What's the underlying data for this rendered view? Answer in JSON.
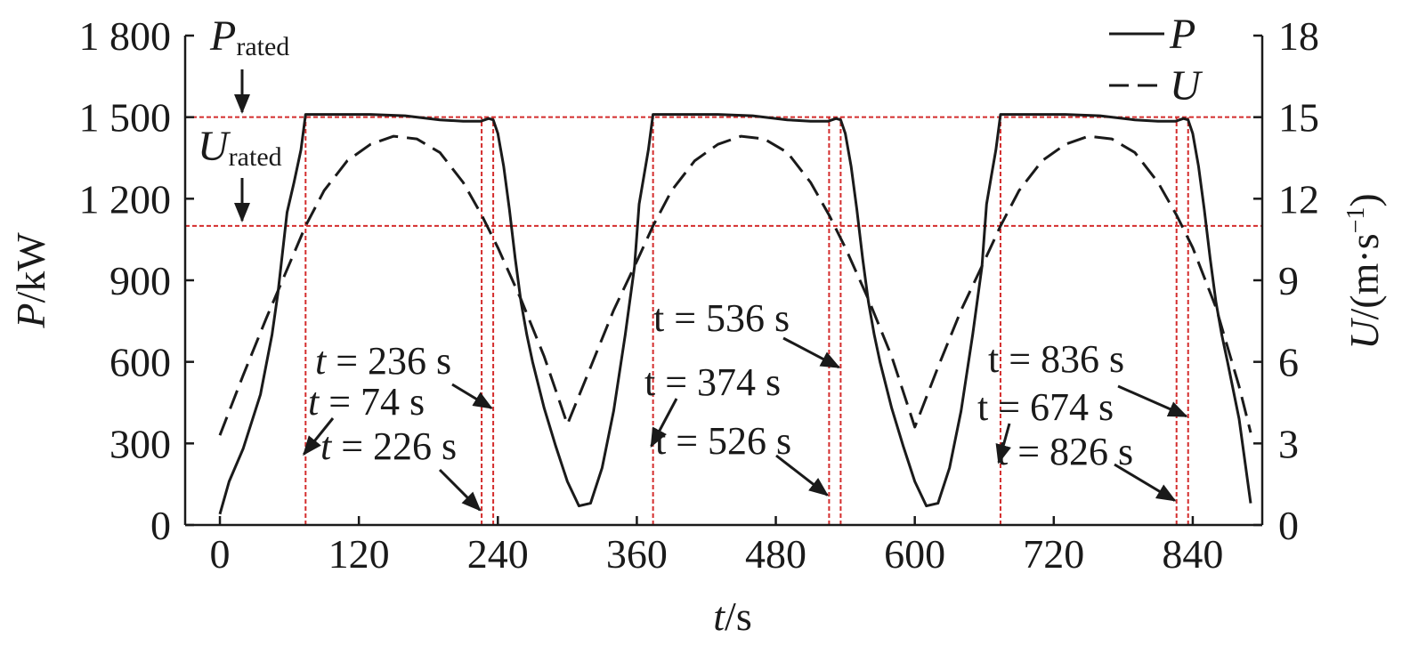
{
  "chart_data": {
    "type": "line",
    "xlabel": {
      "italic": "t",
      "rest": "/s"
    },
    "ylabel_left": {
      "italic": "P",
      "rest": "/kW"
    },
    "ylabel_right": {
      "italic": "U",
      "rest": "/(m·s",
      "sup": "−1",
      "close": ")"
    },
    "xlim": [
      -30,
      900
    ],
    "ylim_left": [
      0,
      1800
    ],
    "ylim_right": [
      0,
      18
    ],
    "x_ticks": [
      0,
      120,
      240,
      360,
      480,
      600,
      720,
      840
    ],
    "x_tick_labels": [
      "0",
      "120",
      "240",
      "360",
      "480",
      "600",
      "720",
      "840"
    ],
    "y_left_ticks": [
      0,
      300,
      600,
      900,
      1200,
      1500,
      1800
    ],
    "y_left_tick_labels": [
      "0",
      "300",
      "600",
      "900",
      "1 200",
      "1 500",
      "1 800"
    ],
    "y_right_ticks": [
      0,
      3,
      6,
      9,
      12,
      15,
      18
    ],
    "y_right_tick_labels": [
      "0",
      "3",
      "6",
      "9",
      "12",
      "15",
      "18"
    ],
    "legend": {
      "placement": "top-right",
      "entries": [
        {
          "name": "P",
          "style": "solid"
        },
        {
          "name": "U",
          "style": "dashed"
        }
      ]
    },
    "series": [
      {
        "name": "P",
        "axis": "left",
        "style": "solid",
        "color": "#1a1a1a",
        "x": [
          0,
          8,
          20,
          35,
          45,
          50,
          58,
          64,
          70,
          74,
          80,
          100,
          130,
          160,
          190,
          210,
          225,
          232,
          236,
          240,
          245,
          250,
          255,
          260,
          265,
          270,
          280,
          290,
          300,
          310,
          320,
          330,
          340,
          350,
          358,
          362,
          366,
          370,
          374,
          380,
          400,
          430,
          460,
          490,
          510,
          525,
          532,
          536,
          540,
          545,
          550,
          555,
          560,
          565,
          570,
          580,
          590,
          600,
          610,
          620,
          630,
          640,
          650,
          658,
          662,
          666,
          670,
          674,
          680,
          700,
          730,
          760,
          790,
          810,
          825,
          832,
          836,
          840,
          845,
          850,
          855,
          860,
          865,
          870,
          880,
          890
        ],
        "values": [
          40,
          160,
          280,
          480,
          700,
          850,
          1150,
          1260,
          1380,
          1510,
          1510,
          1510,
          1510,
          1505,
          1490,
          1485,
          1485,
          1495,
          1490,
          1440,
          1320,
          1160,
          980,
          820,
          700,
          600,
          430,
          290,
          160,
          70,
          80,
          210,
          420,
          700,
          950,
          1180,
          1280,
          1380,
          1510,
          1510,
          1510,
          1510,
          1505,
          1490,
          1485,
          1485,
          1495,
          1490,
          1440,
          1320,
          1160,
          980,
          820,
          700,
          600,
          430,
          290,
          160,
          70,
          80,
          210,
          420,
          700,
          950,
          1180,
          1280,
          1380,
          1510,
          1510,
          1510,
          1510,
          1505,
          1490,
          1485,
          1485,
          1495,
          1490,
          1440,
          1320,
          1160,
          980,
          820,
          700,
          600,
          390,
          80
        ]
      },
      {
        "name": "U",
        "axis": "right",
        "style": "dashed",
        "color": "#1a1a1a",
        "x": [
          0,
          20,
          40,
          60,
          74,
          90,
          110,
          130,
          150,
          170,
          190,
          210,
          226,
          240,
          260,
          280,
          300,
          320,
          340,
          360,
          374,
          390,
          410,
          430,
          450,
          470,
          490,
          510,
          526,
          540,
          560,
          580,
          600,
          620,
          640,
          660,
          674,
          690,
          710,
          730,
          750,
          770,
          790,
          810,
          826,
          840,
          860,
          880,
          890
        ],
        "values": [
          3.3,
          5.5,
          7.6,
          9.6,
          11.0,
          12.3,
          13.4,
          14.0,
          14.3,
          14.2,
          13.7,
          12.6,
          11.4,
          10.2,
          8.3,
          6.2,
          3.7,
          5.8,
          7.9,
          9.7,
          11.0,
          12.3,
          13.4,
          14.0,
          14.3,
          14.2,
          13.7,
          12.6,
          11.4,
          10.2,
          8.3,
          6.2,
          3.6,
          5.8,
          7.9,
          9.7,
          11.0,
          12.3,
          13.4,
          14.0,
          14.3,
          14.2,
          13.7,
          12.6,
          11.4,
          10.2,
          8.0,
          5.1,
          3.4
        ]
      }
    ],
    "reference_lines": {
      "color": "#d42d2d",
      "horizontal": [
        {
          "axis": "left",
          "value": 1500,
          "label_main": "P",
          "label_sub": "rated"
        },
        {
          "axis": "left",
          "value": 1100,
          "label_main": "U",
          "label_sub": "rated"
        }
      ],
      "vertical": [
        74,
        226,
        236,
        374,
        526,
        536,
        674,
        826,
        836
      ]
    },
    "annotations": [
      {
        "t_italic": true,
        "text": " = 236 s",
        "target_x": 236,
        "target_y": 430
      },
      {
        "t_italic": true,
        "text": " = 74 s",
        "target_x": 74,
        "target_y": 260
      },
      {
        "t_italic": true,
        "text": " = 226 s",
        "target_x": 226,
        "target_y": 55
      },
      {
        "t_italic": false,
        "text": " = 536 s",
        "target_x": 536,
        "target_y": 580
      },
      {
        "t_italic": false,
        "text": " = 374 s",
        "target_x": 374,
        "target_y": 290
      },
      {
        "t_italic": false,
        "text": " = 526 s",
        "target_x": 526,
        "target_y": 110
      },
      {
        "t_italic": false,
        "text": " = 836 s",
        "target_x": 836,
        "target_y": 400
      },
      {
        "t_italic": false,
        "text": " = 674 s",
        "target_x": 674,
        "target_y": 230
      },
      {
        "t_italic": false,
        "text": " = 826 s",
        "target_x": 826,
        "target_y": 90
      }
    ]
  }
}
